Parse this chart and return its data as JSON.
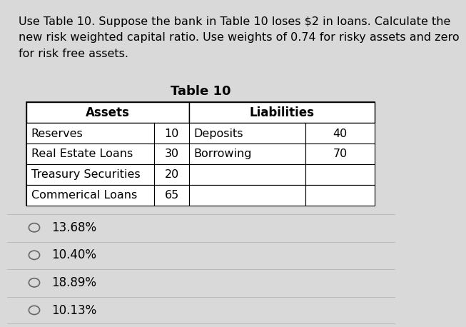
{
  "question_text": "Use Table 10. Suppose the bank in Table 10 loses $2 in loans. Calculate the\nnew risk weighted capital ratio. Use weights of 0.74 for risky assets and zero\nfor risk free assets.",
  "table_title": "Table 10",
  "assets_header": "Assets",
  "liabilities_header": "Liabilities",
  "assets": [
    [
      "Reserves",
      "10"
    ],
    [
      "Real Estate Loans",
      "30"
    ],
    [
      "Treasury Securities",
      "20"
    ],
    [
      "Commerical Loans",
      "65"
    ]
  ],
  "liabilities": [
    [
      "Deposits",
      "40"
    ],
    [
      "Borrowing",
      "70"
    ]
  ],
  "options": [
    "13.68%",
    "10.40%",
    "18.89%",
    "10.13%"
  ],
  "bg_color": "#d9d9d9",
  "question_fontsize": 11.5,
  "table_title_fontsize": 13,
  "header_fontsize": 12,
  "cell_fontsize": 11.5,
  "option_fontsize": 12
}
